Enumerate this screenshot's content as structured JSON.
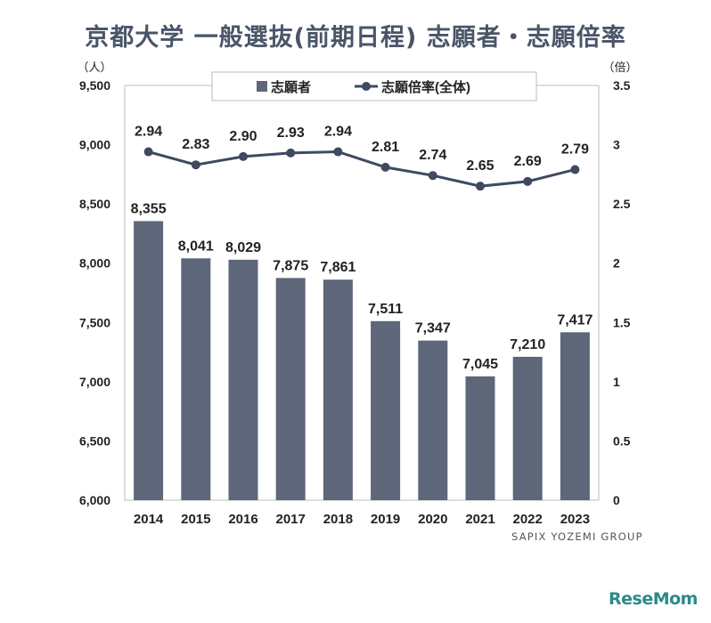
{
  "chart_data": {
    "type": "bar+line",
    "title": "京都大学 一般選抜(前期日程) 志願者・志願倍率",
    "categories": [
      "2014",
      "2015",
      "2016",
      "2017",
      "2018",
      "2019",
      "2020",
      "2021",
      "2022",
      "2023"
    ],
    "series": [
      {
        "name": "志願者",
        "type": "bar",
        "axis": "left",
        "values": [
          8355,
          8041,
          8029,
          7875,
          7861,
          7511,
          7347,
          7045,
          7210,
          7417
        ],
        "labels": [
          "8,355",
          "8,041",
          "8,029",
          "7,875",
          "7,861",
          "7,511",
          "7,347",
          "7,045",
          "7,210",
          "7,417"
        ]
      },
      {
        "name": "志願倍率(全体)",
        "type": "line",
        "axis": "right",
        "values": [
          2.94,
          2.83,
          2.9,
          2.93,
          2.94,
          2.81,
          2.74,
          2.65,
          2.69,
          2.79
        ],
        "labels": [
          "2.94",
          "2.83",
          "2.90",
          "2.93",
          "2.94",
          "2.81",
          "2.74",
          "2.65",
          "2.69",
          "2.79"
        ]
      }
    ],
    "left_axis": {
      "unit": "（人）",
      "ylim": [
        6000,
        9500
      ],
      "ticks": [
        6000,
        6500,
        7000,
        7500,
        8000,
        8500,
        9000,
        9500
      ],
      "tick_labels": [
        "6,000",
        "6,500",
        "7,000",
        "7,500",
        "8,000",
        "8,500",
        "9,000",
        "9,500"
      ]
    },
    "right_axis": {
      "unit": "（倍）",
      "ylim": [
        0,
        3.5
      ],
      "ticks": [
        0,
        0.5,
        1,
        1.5,
        2,
        2.5,
        3,
        3.5
      ],
      "tick_labels": [
        "0",
        "0.5",
        "1",
        "1.5",
        "2",
        "2.5",
        "3",
        "3.5"
      ]
    },
    "grid": false,
    "legend_position": "top-center"
  },
  "credit": "SAPIX YOZEMI GROUP",
  "brand": "ReseMom",
  "colors": {
    "bar": "#5d6779",
    "line": "#3d4a60",
    "title": "#4a5568",
    "text": "#222222"
  }
}
